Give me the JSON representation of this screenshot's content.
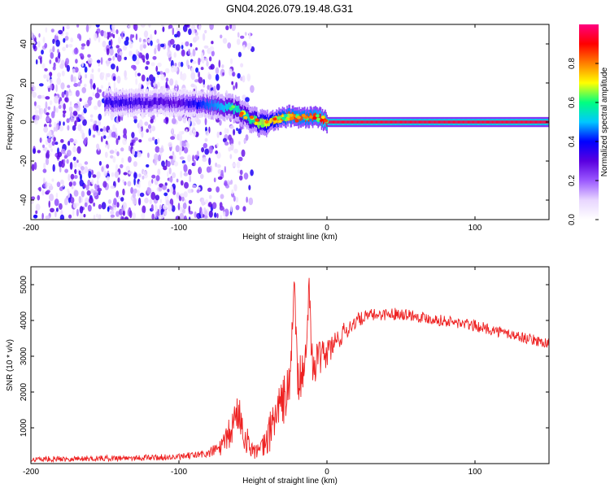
{
  "figure": {
    "title": "GN04.2026.079.19.48.G31"
  },
  "chart_data": [
    {
      "type": "heatmap",
      "title": "GN04.2026.079.19.48.G31",
      "xlabel": "Height of straight line (km)",
      "ylabel": "Frequency (Hz)",
      "xlim": [
        -200,
        150
      ],
      "ylim": [
        -50,
        50
      ],
      "xticks": [
        -200,
        -100,
        0,
        100
      ],
      "yticks": [
        -40,
        -20,
        0,
        20,
        40
      ],
      "colorbar": {
        "label": "Normalized spectral amplitude",
        "range": [
          0,
          1
        ],
        "ticks": [
          "0.0",
          "0.2",
          "0.4",
          "0.6",
          "0.8"
        ],
        "colors": [
          "#ffffff",
          "#e8d6ff",
          "#9b59ff",
          "#5a00e0",
          "#0000ff",
          "#00c8ff",
          "#00ff80",
          "#ffff00",
          "#ff8000",
          "#ff0000",
          "#ff0080"
        ]
      },
      "ridge": {
        "description": "Main spectral line frequency vs height",
        "x": [
          -140,
          -100,
          -80,
          -70,
          -60,
          -55,
          -50,
          -45,
          -40,
          -35,
          -30,
          -25,
          -20,
          -15,
          -10,
          -5,
          0,
          50,
          100,
          150
        ],
        "y": [
          10,
          10,
          9,
          8,
          6,
          3,
          1,
          -1,
          0,
          1,
          2,
          3,
          2,
          2,
          3,
          2,
          0,
          0,
          0,
          0
        ],
        "amplitude": [
          0.35,
          0.3,
          0.45,
          0.5,
          0.55,
          0.55,
          0.6,
          0.65,
          0.7,
          0.75,
          0.8,
          0.85,
          0.85,
          0.85,
          0.85,
          0.9,
          0.95,
          0.95,
          0.95,
          0.95
        ]
      },
      "noise_region": {
        "x_range": [
          -200,
          -50
        ],
        "y_range": [
          -50,
          50
        ],
        "amplitude_range": [
          0.05,
          0.4
        ]
      }
    },
    {
      "type": "line",
      "xlabel": "Height of straight line (km)",
      "ylabel": "SNR (10 * v/v)",
      "xlim": [
        -200,
        150
      ],
      "ylim": [
        0,
        5500
      ],
      "xticks": [
        -200,
        -100,
        0,
        100
      ],
      "yticks": [
        1000,
        2000,
        3000,
        4000,
        5000
      ],
      "series": [
        {
          "name": "SNR",
          "color": "#ee2222",
          "x": [
            -200,
            -150,
            -100,
            -80,
            -70,
            -65,
            -60,
            -55,
            -50,
            -45,
            -40,
            -35,
            -30,
            -25,
            -22,
            -20,
            -15,
            -12,
            -10,
            -5,
            0,
            10,
            20,
            30,
            50,
            70,
            100,
            130,
            150
          ],
          "y": [
            120,
            150,
            180,
            280,
            500,
            900,
            1500,
            700,
            400,
            300,
            700,
            1400,
            1700,
            2200,
            5200,
            2300,
            2500,
            5000,
            2800,
            2900,
            3100,
            3600,
            4000,
            4150,
            4200,
            4050,
            3850,
            3550,
            3350
          ],
          "noise_amplitude": [
            80,
            80,
            90,
            120,
            300,
            500,
            600,
            400,
            250,
            300,
            500,
            700,
            700,
            700,
            300,
            700,
            600,
            300,
            600,
            500,
            450,
            300,
            200,
            170,
            170,
            160,
            160,
            150,
            150
          ]
        }
      ]
    }
  ]
}
